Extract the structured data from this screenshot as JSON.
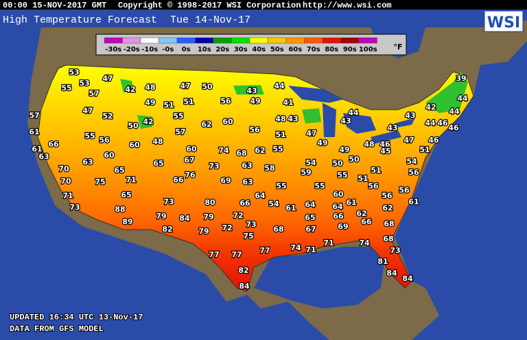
{
  "header": {
    "timestamp": "00:00 15-NOV-2017 GMT",
    "copyright": "Copyright © 1998-2017 WSI Corporation",
    "url": "http://www.wsi.com"
  },
  "title": "High Temperature Forecast",
  "date": "Tue 14-Nov-17",
  "logo": "WSI",
  "legend": {
    "unit": "°F",
    "bins": [
      {
        "label": "-30s",
        "color": "#c000c0"
      },
      {
        "label": "-20s",
        "color": "#e890e8"
      },
      {
        "label": "-10s",
        "color": "#ffffff"
      },
      {
        "label": "-0s",
        "color": "#80c8ff"
      },
      {
        "label": "0s",
        "color": "#2060ff"
      },
      {
        "label": "10s",
        "color": "#0000a0"
      },
      {
        "label": "20s",
        "color": "#00a000"
      },
      {
        "label": "30s",
        "color": "#00e000"
      },
      {
        "label": "40s",
        "color": "#ffff00"
      },
      {
        "label": "50s",
        "color": "#ffc800"
      },
      {
        "label": "60s",
        "color": "#ff9800"
      },
      {
        "label": "70s",
        "color": "#ff5800"
      },
      {
        "label": "80s",
        "color": "#e81000"
      },
      {
        "label": "90s",
        "color": "#a00000"
      },
      {
        "label": "100s",
        "color": "#c000c0"
      }
    ]
  },
  "temperatures": [
    53,
    55,
    53,
    57,
    47,
    42,
    48,
    47,
    50,
    43,
    44,
    39,
    44,
    49,
    51,
    51,
    56,
    49,
    41,
    42,
    44,
    57,
    47,
    52,
    55,
    44,
    43,
    48,
    43,
    43,
    50,
    42,
    62,
    60,
    56,
    51,
    47,
    43,
    44,
    46,
    46,
    61,
    55,
    56,
    57,
    48,
    60,
    49,
    48,
    46,
    47,
    46,
    51,
    66,
    61,
    63,
    60,
    60,
    74,
    68,
    62,
    55,
    49,
    45,
    63,
    65,
    67,
    73,
    63,
    58,
    54,
    50,
    50,
    54,
    51,
    56,
    70,
    65,
    71,
    76,
    66,
    69,
    63,
    59,
    55,
    51,
    55,
    55,
    56,
    56,
    70,
    75,
    65,
    64,
    60,
    56,
    61,
    71,
    73,
    80,
    66,
    54,
    61,
    64,
    61,
    64,
    62,
    62,
    73,
    88,
    79,
    84,
    79,
    72,
    65,
    66,
    66,
    68,
    89,
    82,
    79,
    72,
    73,
    68,
    67,
    69,
    75,
    68,
    74,
    71,
    71,
    74,
    73,
    77,
    77,
    77,
    81,
    82,
    84,
    84,
    84
  ],
  "footer": {
    "updated": "UPDATED 16:34 UTC 13-Nov-17",
    "source": "DATA FROM GFS MODEL"
  }
}
